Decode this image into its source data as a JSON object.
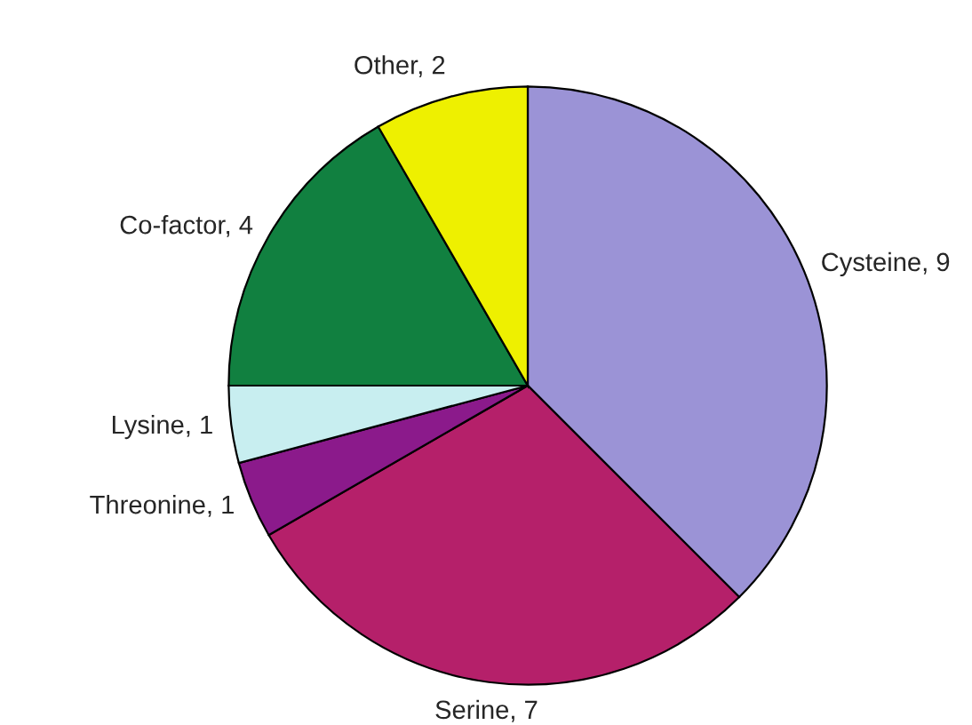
{
  "chart_data": {
    "type": "pie",
    "categories": [
      "Cysteine, 9",
      "Serine, 7",
      "Threonine, 1",
      "Lysine, 1",
      "Co-factor, 4",
      "Other, 2"
    ],
    "values": [
      9,
      7,
      1,
      1,
      4,
      2
    ],
    "colors": [
      "#9b93d6",
      "#b5206a",
      "#8b1a8b",
      "#c8eef0",
      "#118040",
      "#eef000"
    ],
    "legend": false
  }
}
